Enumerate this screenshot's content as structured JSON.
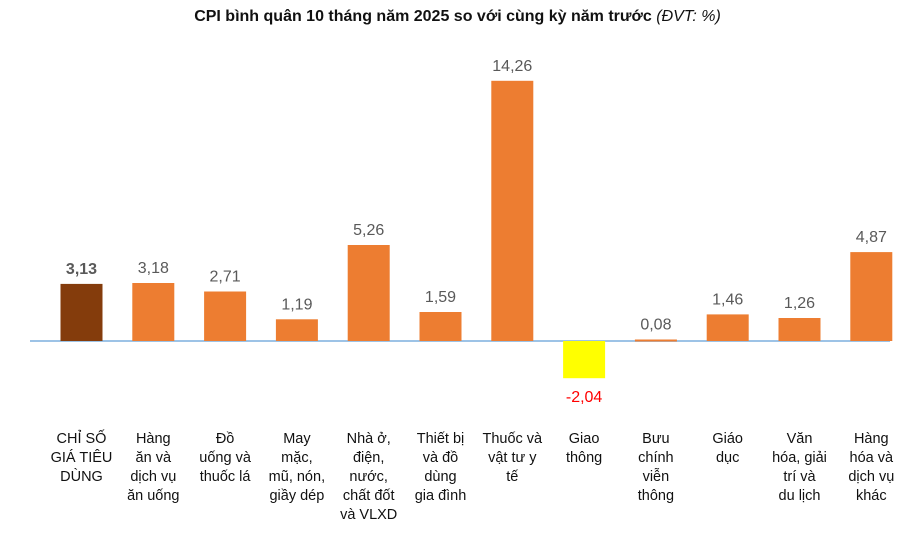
{
  "chart_data": {
    "type": "bar",
    "title": "CPI bình quân 10 tháng năm 2025 so với cùng kỳ năm trước",
    "unit_label": "(ĐVT: %)",
    "categories": [
      "CHỈ SỐ\nGIÁ TIÊU\nDÙNG",
      "Hàng\năn và\ndịch vụ\năn uống",
      "Đồ\nuống và\nthuốc lá",
      "May\nmặc,\nmũ, nón,\ngiầy dép",
      "Nhà ở,\nđiện,\nnước,\nchất đốt\nvà VLXD",
      "Thiết bị\nvà đồ\ndùng\ngia đình",
      "Thuốc và\nvật tư y\ntế",
      "Giao\nthông",
      "Bưu\nchính\nviễn\nthông",
      "Giáo\ndục",
      "Văn\nhóa, giải\ntrí và\ndu lịch",
      "Hàng\nhóa và\ndịch vụ\nkhác"
    ],
    "values": [
      3.13,
      3.18,
      2.71,
      1.19,
      5.26,
      1.59,
      14.26,
      -2.04,
      0.08,
      1.46,
      1.26,
      4.87
    ],
    "value_labels": [
      "3,13",
      "3,18",
      "2,71",
      "1,19",
      "5,26",
      "1,59",
      "14,26",
      "-2,04",
      "0,08",
      "1,46",
      "1,26",
      "4,87"
    ],
    "colors": {
      "default": "#ED7D31",
      "highlight_first": "#843C0C",
      "negative": "#FFFF00",
      "negative_label": "#FF0000",
      "label": "#595959",
      "baseline": "#9DC3E6"
    },
    "grid": false,
    "legend": "none"
  }
}
